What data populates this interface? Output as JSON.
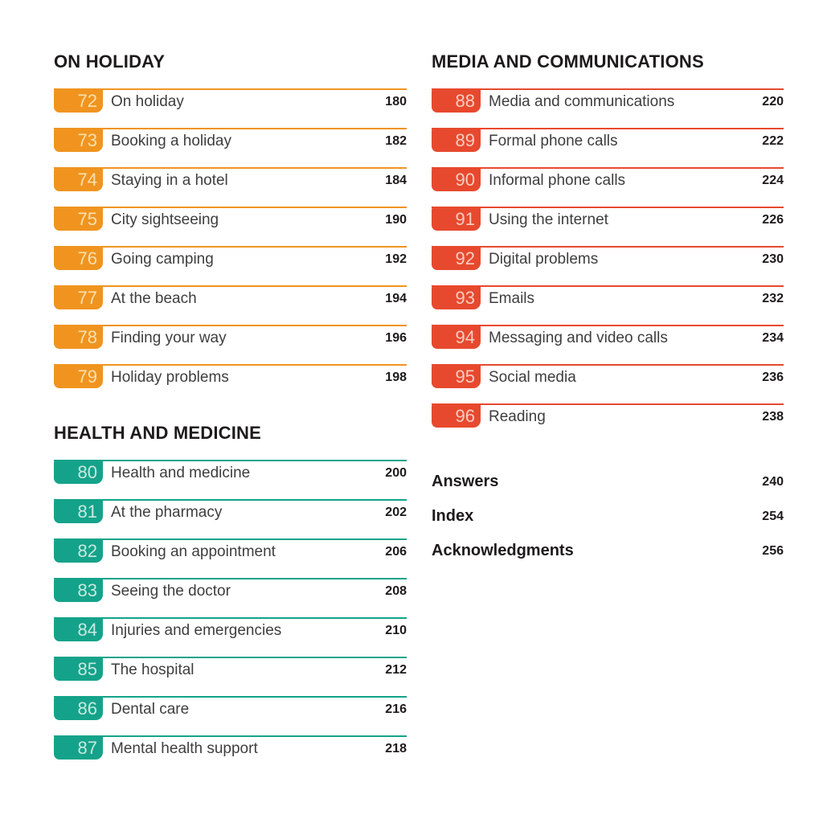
{
  "page": {
    "background_color": "#ffffff",
    "title_text_color": "#1d1b1a",
    "unit_label_color": "#3e3e3e"
  },
  "sections": [
    {
      "id": "on-holiday",
      "title": "ON HOLIDAY",
      "accent_color": "#f0941f",
      "number_color": "#fae0ae",
      "column": "left",
      "items": [
        {
          "number": "72",
          "label": "On holiday",
          "page": "180"
        },
        {
          "number": "73",
          "label": "Booking a holiday",
          "page": "182"
        },
        {
          "number": "74",
          "label": "Staying in a hotel",
          "page": "184"
        },
        {
          "number": "75",
          "label": "City sightseeing",
          "page": "190"
        },
        {
          "number": "76",
          "label": "Going camping",
          "page": "192"
        },
        {
          "number": "77",
          "label": "At the beach",
          "page": "194"
        },
        {
          "number": "78",
          "label": "Finding your way",
          "page": "196"
        },
        {
          "number": "79",
          "label": "Holiday problems",
          "page": "198"
        }
      ]
    },
    {
      "id": "health-and-medicine",
      "title": "HEALTH AND MEDICINE",
      "accent_color": "#14a38a",
      "number_color": "#c9e9e1",
      "column": "left",
      "items": [
        {
          "number": "80",
          "label": "Health and medicine",
          "page": "200"
        },
        {
          "number": "81",
          "label": "At the pharmacy",
          "page": "202"
        },
        {
          "number": "82",
          "label": "Booking an appointment",
          "page": "206"
        },
        {
          "number": "83",
          "label": "Seeing the doctor",
          "page": "208"
        },
        {
          "number": "84",
          "label": "Injuries and emergencies",
          "page": "210"
        },
        {
          "number": "85",
          "label": "The hospital",
          "page": "212"
        },
        {
          "number": "86",
          "label": "Dental care",
          "page": "216"
        },
        {
          "number": "87",
          "label": "Mental health support",
          "page": "218"
        }
      ]
    },
    {
      "id": "media-and-communications",
      "title": "MEDIA AND COMMUNICATIONS",
      "accent_color": "#e7492e",
      "number_color": "#f7cdc1",
      "column": "right",
      "items": [
        {
          "number": "88",
          "label": "Media and communications",
          "page": "220"
        },
        {
          "number": "89",
          "label": "Formal phone calls",
          "page": "222"
        },
        {
          "number": "90",
          "label": "Informal phone calls",
          "page": "224"
        },
        {
          "number": "91",
          "label": "Using the internet",
          "page": "226"
        },
        {
          "number": "92",
          "label": "Digital problems",
          "page": "230"
        },
        {
          "number": "93",
          "label": "Emails",
          "page": "232"
        },
        {
          "number": "94",
          "label": "Messaging and video calls",
          "page": "234"
        },
        {
          "number": "95",
          "label": "Social media",
          "page": "236"
        },
        {
          "number": "96",
          "label": "Reading",
          "page": "238"
        }
      ]
    }
  ],
  "backmatter": [
    {
      "label": "Answers",
      "page": "240"
    },
    {
      "label": "Index",
      "page": "254"
    },
    {
      "label": "Acknowledgments",
      "page": "256"
    }
  ]
}
